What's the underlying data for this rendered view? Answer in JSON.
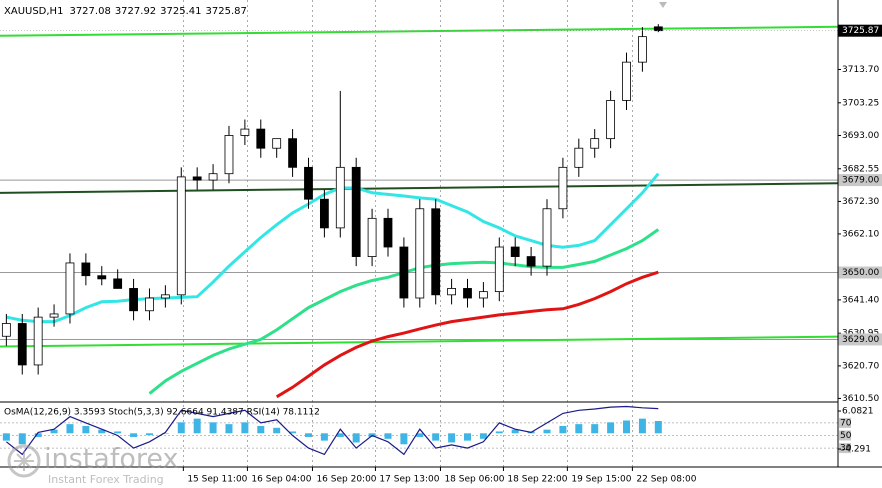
{
  "chart_data": [
    {
      "type": "candlestick",
      "title": "XAUUSD,H1",
      "open": [
        3630,
        3634,
        3621,
        3636,
        3637,
        3653,
        3649,
        3648,
        3645,
        3638,
        3642,
        3643,
        3680,
        3679,
        3681,
        3693,
        3695,
        3689,
        3692,
        3683,
        3673,
        3664,
        3683,
        3655,
        3667,
        3658,
        3642,
        3670,
        3643,
        3645,
        3642,
        3644,
        3658,
        3655,
        3652,
        3670,
        3683,
        3689,
        3692,
        3704,
        3716,
        3727.08
      ],
      "high": [
        3637,
        3637,
        3639,
        3640,
        3656,
        3656,
        3652,
        3651,
        3648,
        3645,
        3646,
        3683,
        3683,
        3684,
        3696,
        3698,
        3698,
        3692,
        3695,
        3686,
        3676,
        3707,
        3686,
        3670,
        3670,
        3661,
        3673,
        3673,
        3648,
        3648,
        3647,
        3661,
        3661,
        3658,
        3673,
        3686,
        3692,
        3695,
        3707,
        3719,
        3727,
        3727.92
      ],
      "low": [
        3627,
        3618,
        3618,
        3633,
        3634,
        3646,
        3646,
        3645,
        3635,
        3635,
        3639,
        3640,
        3676,
        3676,
        3678,
        3690,
        3686,
        3686,
        3680,
        3670,
        3661,
        3661,
        3652,
        3652,
        3655,
        3639,
        3639,
        3640,
        3640,
        3639,
        3639,
        3641,
        3652,
        3649,
        3649,
        3667,
        3680,
        3686,
        3689,
        3701,
        3713,
        3725.41
      ],
      "close": [
        3634,
        3621,
        3636,
        3637,
        3653,
        3649,
        3648,
        3645,
        3638,
        3642,
        3643,
        3680,
        3679,
        3681,
        3693,
        3695,
        3689,
        3692,
        3683,
        3673,
        3664,
        3683,
        3655,
        3667,
        3658,
        3642,
        3670,
        3643,
        3645,
        3642,
        3644,
        3658,
        3655,
        3652,
        3670,
        3683,
        3689,
        3692,
        3704,
        3716,
        3724,
        3725.87
      ],
      "colors": {
        "up": "#ffffff",
        "down": "#000000",
        "outline": "#000000"
      },
      "series": [
        {
          "color": "#33e6e6",
          "values": [
            3636,
            3635,
            3634.6,
            3634.6,
            3636.5,
            3639,
            3640.8,
            3641,
            3641.5,
            3641.8,
            3642,
            3642.2,
            3642.4,
            3647,
            3652,
            3656.5,
            3661,
            3665,
            3668.7,
            3671.5,
            3674.5,
            3676.5,
            3676.5,
            3675,
            3674.5,
            3674,
            3673.4,
            3673,
            3671,
            3669,
            3666,
            3664,
            3661.5,
            3660,
            3658.5,
            3657.9,
            3658.5,
            3660,
            3665,
            3670,
            3675,
            3681
          ]
        },
        {
          "color": "#2ee08a",
          "values": [
            null,
            null,
            null,
            null,
            null,
            null,
            null,
            null,
            null,
            3612,
            3616,
            3619,
            3621.5,
            3624,
            3626,
            3627.5,
            3629,
            3632,
            3635.5,
            3639,
            3641.5,
            3644,
            3646,
            3647.5,
            3648.5,
            3650,
            3651.5,
            3652.3,
            3652.8,
            3653,
            3653.2,
            3653,
            3652.4,
            3651.8,
            3651.6,
            3651.6,
            3652.5,
            3653.5,
            3655.5,
            3657.5,
            3660,
            3663.5
          ]
        },
        {
          "color": "#e01414",
          "values": [
            null,
            null,
            null,
            null,
            null,
            null,
            null,
            null,
            null,
            null,
            null,
            null,
            null,
            null,
            null,
            null,
            null,
            3611,
            3614,
            3617.5,
            3621,
            3624,
            3626.5,
            3628.5,
            3629.9,
            3631,
            3632.3,
            3633.5,
            3634.6,
            3635.3,
            3636,
            3636.7,
            3637.2,
            3637.8,
            3638.3,
            3638.6,
            3640,
            3641.8,
            3644,
            3646.5,
            3648.5,
            3650.1
          ]
        }
      ],
      "trendlines": [
        {
          "color": "#33dd33",
          "values": [
            3724.3,
            3727.1
          ]
        },
        {
          "color": "#33dd33",
          "values": [
            3626.8,
            3629.9
          ]
        },
        {
          "color": "#1f4f1f",
          "values": [
            3675,
            3678
          ]
        }
      ],
      "levels": [
        {
          "value": 3679,
          "label": "3679.00"
        },
        {
          "value": 3650,
          "label": "3650.00"
        },
        {
          "value": 3629,
          "label": "3629.00"
        }
      ],
      "ylim": [
        3610,
        3735.5
      ],
      "yticks": [
        {
          "value": 3713.7,
          "label": "3713.70"
        },
        {
          "value": 3703.25,
          "label": "3703.25"
        },
        {
          "value": 3693,
          "label": "3693.00"
        },
        {
          "value": 3682.55,
          "label": "3682.55"
        },
        {
          "value": 3672.3,
          "label": "3672.30"
        },
        {
          "value": 3662.1,
          "label": "3662.10"
        },
        {
          "value": 3641.4,
          "label": "3641.40"
        },
        {
          "value": 3630.95,
          "label": "3630.95"
        },
        {
          "value": 3620.7,
          "label": "3620.70"
        },
        {
          "value": 3610.5,
          "label": "3610.50"
        }
      ],
      "xlim": [
        -0.4,
        52.3
      ],
      "xticks": [
        {
          "value": 11.13,
          "label": "15 Sep 11:00"
        },
        {
          "value": 15.16,
          "label": "16 Sep 04:00"
        },
        {
          "value": 19.25,
          "label": "16 Sep 20:00"
        },
        {
          "value": 23.21,
          "label": "17 Sep 13:00"
        },
        {
          "value": 27.3,
          "label": "18 Sep 06:00"
        },
        {
          "value": 31.26,
          "label": "18 Sep 22:00"
        },
        {
          "value": 35.28,
          "label": "19 Sep 15:00"
        },
        {
          "value": 39.37,
          "label": "22 Sep 08:00"
        }
      ],
      "grid": true
    },
    {
      "type": "oscillator",
      "title": "OsMA(12,26,9) 3.3593 Stoch(5,3,3) 92.6664 91.4387 RSI(14) 78.1112",
      "series": [
        {
          "color": "#3fb5e6",
          "axis": "y2",
          "values": [
            -2,
            -3,
            -1,
            1,
            2.5,
            2,
            1,
            0.5,
            -1,
            -0.5,
            0,
            3,
            4,
            3,
            2.5,
            3,
            2,
            1.5,
            0.5,
            -1,
            -2,
            -1,
            -2.5,
            -1,
            -1.5,
            -3,
            -1,
            -2,
            -2.5,
            -2,
            -1.5,
            0.5,
            1,
            0.5,
            1,
            2,
            2.5,
            2.5,
            3,
            3.5,
            4,
            3.3593
          ]
        },
        {
          "color": "#1a1a8c",
          "values": [
            40,
            20,
            55,
            60,
            80,
            70,
            60,
            50,
            30,
            40,
            55,
            90,
            85,
            80,
            85,
            90,
            70,
            75,
            50,
            30,
            20,
            60,
            30,
            50,
            40,
            20,
            60,
            30,
            35,
            30,
            40,
            70,
            60,
            55,
            70,
            85,
            90,
            92,
            95,
            96,
            94,
            92.6664
          ]
        }
      ],
      "ylim": [
        0,
        100
      ],
      "yticks": [
        30,
        50,
        70
      ],
      "y2lim": [
        -9.2,
        8.0
      ],
      "y2ticks": [
        6.0821,
        -4.291
      ]
    }
  ],
  "watermark": {
    "brand": "instaforex",
    "tagline": "Instant Forex Trading"
  }
}
